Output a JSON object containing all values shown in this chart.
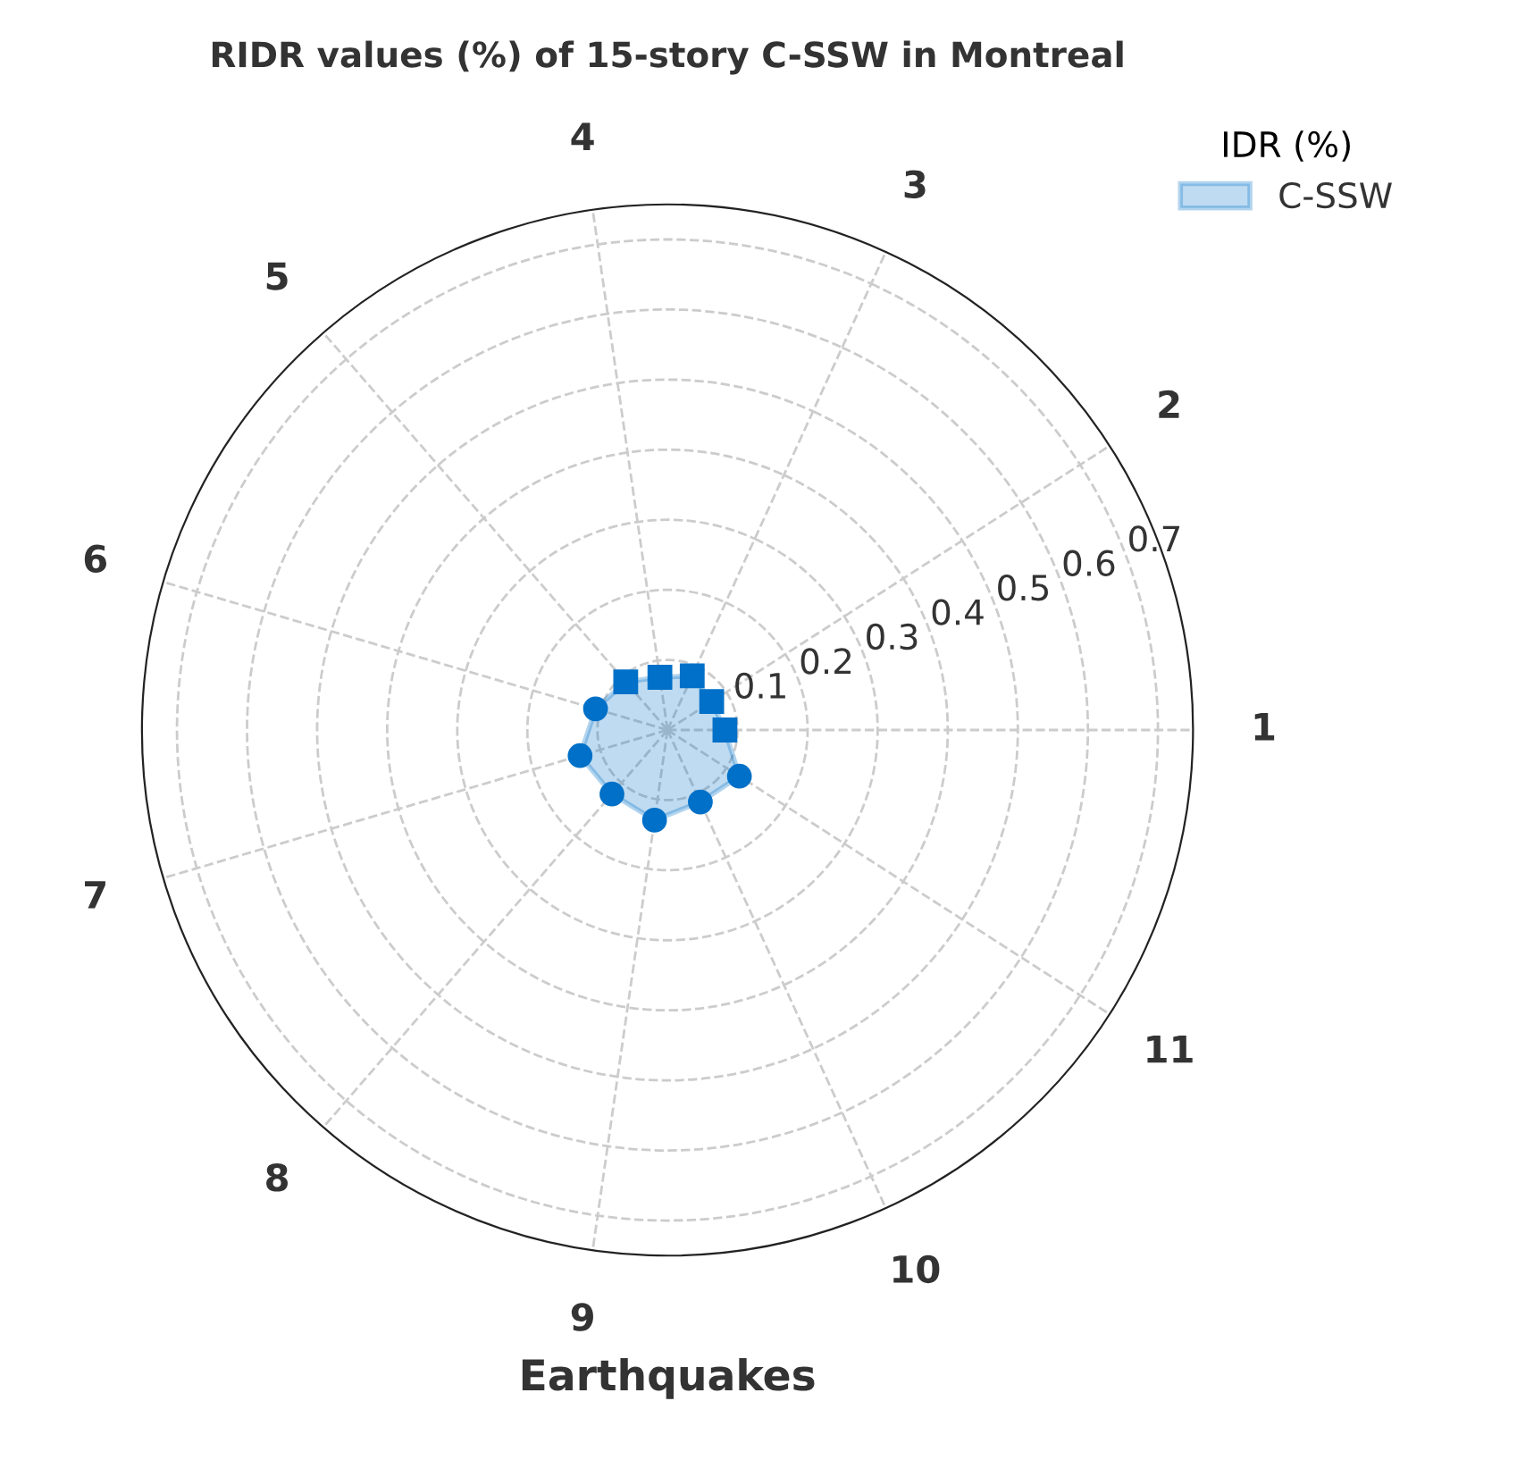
{
  "chart_data": {
    "type": "radar",
    "title": "RIDR values (%) of 15-story C-SSW in Montreal",
    "xlabel": "Earthquakes",
    "legend_title": "IDR (%)",
    "categories": [
      "3",
      "2",
      "1",
      "11",
      "10",
      "9",
      "8",
      "7",
      "6",
      "5",
      "4"
    ],
    "series": [
      {
        "name": "C-SSW",
        "color": "#0070c8",
        "marker": [
          "square",
          "square",
          "square",
          "circle",
          "circle",
          "circle",
          "circle",
          "circle",
          "circle",
          "square",
          "square"
        ],
        "values": [
          0.085,
          0.075,
          0.082,
          0.122,
          0.113,
          0.13,
          0.121,
          0.13,
          0.107,
          0.091,
          0.076
        ]
      }
    ],
    "ylim": [
      0,
      0.75
    ],
    "yticks": [
      0.1,
      0.2,
      0.3,
      0.4,
      0.5,
      0.6,
      0.7
    ],
    "grid": true,
    "legend": "top right",
    "line_style": "dashed"
  }
}
